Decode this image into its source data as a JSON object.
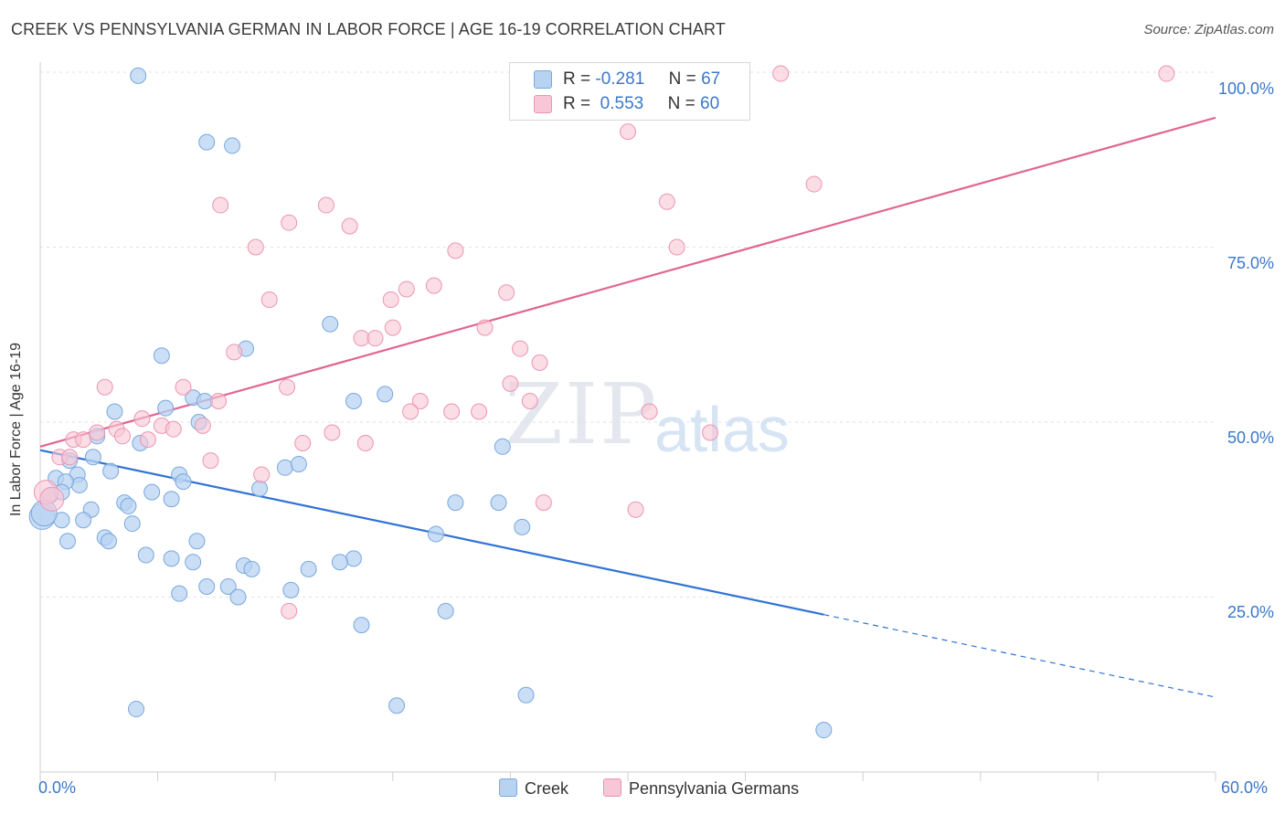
{
  "header": {
    "title": "CREEK VS PENNSYLVANIA GERMAN IN LABOR FORCE | AGE 16-19 CORRELATION CHART",
    "source": "Source: ZipAtlas.com"
  },
  "watermark": {
    "zip": "ZIP",
    "atlas": "atlas"
  },
  "legend_top": {
    "creek": {
      "r_label": "R =",
      "r_value": "-0.281",
      "n_label": "N =",
      "n_value": "67"
    },
    "penn": {
      "r_label": "R =",
      "r_value": "0.553",
      "n_label": "N =",
      "n_value": "60"
    }
  },
  "legend_bottom": {
    "creek": "Creek",
    "penn": "Pennsylvania Germans"
  },
  "colors": {
    "creek_fill": "#b8d3f2",
    "creek_stroke": "#7aa8dc",
    "creek_line": "#2f73d4",
    "penn_fill": "#f8c6d6",
    "penn_stroke": "#eb95b2",
    "penn_line": "#e06690",
    "tick_label": "#3b78c8",
    "grid": "#dde2ea"
  },
  "chart_data": {
    "type": "scatter",
    "title": "CREEK VS PENNSYLVANIA GERMAN IN LABOR FORCE | AGE 16-19 CORRELATION CHART",
    "xlabel": "",
    "ylabel": "In Labor Force | Age 16-19",
    "xlim": [
      0,
      60
    ],
    "ylim": [
      0,
      100
    ],
    "x_tick_labels": [
      "0.0%",
      "60.0%"
    ],
    "y_tick_labels": [
      "100.0%",
      "75.0%",
      "50.0%",
      "25.0%"
    ],
    "y_ticks": [
      100,
      75,
      50,
      25
    ],
    "grid": true,
    "legend_placement": "top-center",
    "series": [
      {
        "name": "Creek",
        "r": -0.281,
        "n": 67,
        "trend": {
          "x0": 0,
          "y0": 46,
          "x1": 40,
          "y1": 22.5,
          "dash_to_x": 60,
          "dash_to_y": 10.7
        },
        "points": [
          [
            5.0,
            99.5
          ],
          [
            8.5,
            90.0
          ],
          [
            9.8,
            89.5
          ],
          [
            6.2,
            59.5
          ],
          [
            10.5,
            60.5
          ],
          [
            14.8,
            64.0
          ],
          [
            3.8,
            51.5
          ],
          [
            6.4,
            52.0
          ],
          [
            7.8,
            53.5
          ],
          [
            8.4,
            53.0
          ],
          [
            16.0,
            53.0
          ],
          [
            17.6,
            54.0
          ],
          [
            2.9,
            48.0
          ],
          [
            5.1,
            47.0
          ],
          [
            8.1,
            50.0
          ],
          [
            23.6,
            46.5
          ],
          [
            2.7,
            45.0
          ],
          [
            3.6,
            43.0
          ],
          [
            1.5,
            44.5
          ],
          [
            1.9,
            42.5
          ],
          [
            2.0,
            41.0
          ],
          [
            0.8,
            42.0
          ],
          [
            1.3,
            41.5
          ],
          [
            7.1,
            42.5
          ],
          [
            7.3,
            41.5
          ],
          [
            12.5,
            43.5
          ],
          [
            13.2,
            44.0
          ],
          [
            11.2,
            40.5
          ],
          [
            0.5,
            39.5
          ],
          [
            1.1,
            40.0
          ],
          [
            5.7,
            40.0
          ],
          [
            6.7,
            39.0
          ],
          [
            4.3,
            38.5
          ],
          [
            4.5,
            38.0
          ],
          [
            2.6,
            37.5
          ],
          [
            21.2,
            38.5
          ],
          [
            23.4,
            38.5
          ],
          [
            1.1,
            36.0
          ],
          [
            2.2,
            36.0
          ],
          [
            4.7,
            35.5
          ],
          [
            24.6,
            35.0
          ],
          [
            20.2,
            34.0
          ],
          [
            1.4,
            33.0
          ],
          [
            3.3,
            33.5
          ],
          [
            3.5,
            33.0
          ],
          [
            8.0,
            33.0
          ],
          [
            5.4,
            31.0
          ],
          [
            6.7,
            30.5
          ],
          [
            7.8,
            30.0
          ],
          [
            16.0,
            30.5
          ],
          [
            15.3,
            30.0
          ],
          [
            10.4,
            29.5
          ],
          [
            10.8,
            29.0
          ],
          [
            13.7,
            29.0
          ],
          [
            8.5,
            26.5
          ],
          [
            9.6,
            26.5
          ],
          [
            7.1,
            25.5
          ],
          [
            10.1,
            25.0
          ],
          [
            12.8,
            26.0
          ],
          [
            20.7,
            23.0
          ],
          [
            16.4,
            21.0
          ],
          [
            0.1,
            36.5
          ],
          [
            0.2,
            37.0
          ],
          [
            4.9,
            9.0
          ],
          [
            18.2,
            9.5
          ],
          [
            24.8,
            11.0
          ],
          [
            40.0,
            6.0
          ]
        ]
      },
      {
        "name": "Pennsylvania Germans",
        "r": 0.553,
        "n": 60,
        "trend": {
          "x0": 0,
          "y0": 46.5,
          "x1": 60,
          "y1": 93.5
        },
        "points": [
          [
            28.0,
            99.8
          ],
          [
            37.8,
            99.8
          ],
          [
            57.5,
            99.8
          ],
          [
            30.0,
            91.5
          ],
          [
            39.5,
            84.0
          ],
          [
            9.2,
            81.0
          ],
          [
            14.6,
            81.0
          ],
          [
            32.0,
            81.5
          ],
          [
            12.7,
            78.5
          ],
          [
            15.8,
            78.0
          ],
          [
            11.0,
            75.0
          ],
          [
            21.2,
            74.5
          ],
          [
            32.5,
            75.0
          ],
          [
            11.7,
            67.5
          ],
          [
            17.9,
            67.5
          ],
          [
            18.7,
            69.0
          ],
          [
            20.1,
            69.5
          ],
          [
            23.8,
            68.5
          ],
          [
            18.0,
            63.5
          ],
          [
            22.7,
            63.5
          ],
          [
            9.9,
            60.0
          ],
          [
            16.4,
            62.0
          ],
          [
            17.1,
            62.0
          ],
          [
            24.5,
            60.5
          ],
          [
            25.5,
            58.5
          ],
          [
            3.3,
            55.0
          ],
          [
            7.3,
            55.0
          ],
          [
            12.6,
            55.0
          ],
          [
            24.0,
            55.5
          ],
          [
            9.1,
            53.0
          ],
          [
            19.4,
            53.0
          ],
          [
            18.9,
            51.5
          ],
          [
            21.0,
            51.5
          ],
          [
            22.4,
            51.5
          ],
          [
            25.0,
            53.0
          ],
          [
            31.1,
            51.5
          ],
          [
            5.2,
            50.5
          ],
          [
            6.2,
            49.5
          ],
          [
            6.8,
            49.0
          ],
          [
            8.3,
            49.5
          ],
          [
            2.9,
            48.5
          ],
          [
            3.9,
            49.0
          ],
          [
            4.2,
            48.0
          ],
          [
            14.9,
            48.5
          ],
          [
            34.2,
            48.5
          ],
          [
            1.7,
            47.5
          ],
          [
            2.2,
            47.5
          ],
          [
            5.5,
            47.5
          ],
          [
            13.4,
            47.0
          ],
          [
            16.6,
            47.0
          ],
          [
            1.0,
            45.0
          ],
          [
            1.5,
            45.0
          ],
          [
            8.7,
            44.5
          ],
          [
            11.3,
            42.5
          ],
          [
            25.7,
            38.5
          ],
          [
            30.4,
            37.5
          ],
          [
            0.3,
            40.0
          ],
          [
            0.6,
            39.0
          ],
          [
            12.7,
            23.0
          ],
          [
            27.9,
            99.8
          ]
        ]
      }
    ]
  }
}
